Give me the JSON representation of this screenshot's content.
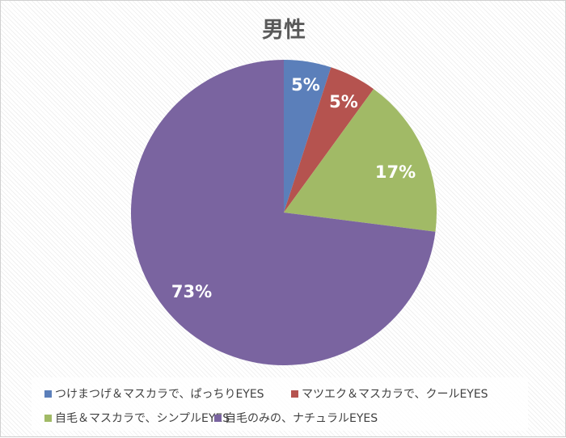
{
  "chart_data": {
    "type": "pie",
    "title": "男性",
    "categories": [
      "つけまつげ＆マスカラで、ぱっちりEYES",
      "マツエク＆マスカラで、クールEYES",
      "自毛＆マスカラで、シンプルEYES",
      "自毛のみの、ナチュラルEYES"
    ],
    "values": [
      5,
      5,
      17,
      73
    ],
    "labels": [
      "5%",
      "5%",
      "17%",
      "73%"
    ],
    "colors": [
      "#4F81BD",
      "#C0504D",
      "#9BBB59",
      "#8064A2"
    ],
    "legend_position": "bottom",
    "start_angle": 0,
    "direction": "clockwise"
  },
  "title": "男性",
  "legend": {
    "items": [
      {
        "label": "つけまつげ＆マスカラで、ぱっちりEYES",
        "color": "#4F81BD"
      },
      {
        "label": "マツエク＆マスカラで、クールEYES",
        "color": "#C0504D"
      },
      {
        "label": "自毛＆マスカラで、シンプルEYES",
        "color": "#9BBB59"
      },
      {
        "label": "自毛のみの、ナチュラルEYES",
        "color": "#8064A2"
      }
    ]
  },
  "data_labels": [
    "5%",
    "5%",
    "17%",
    "73%"
  ]
}
